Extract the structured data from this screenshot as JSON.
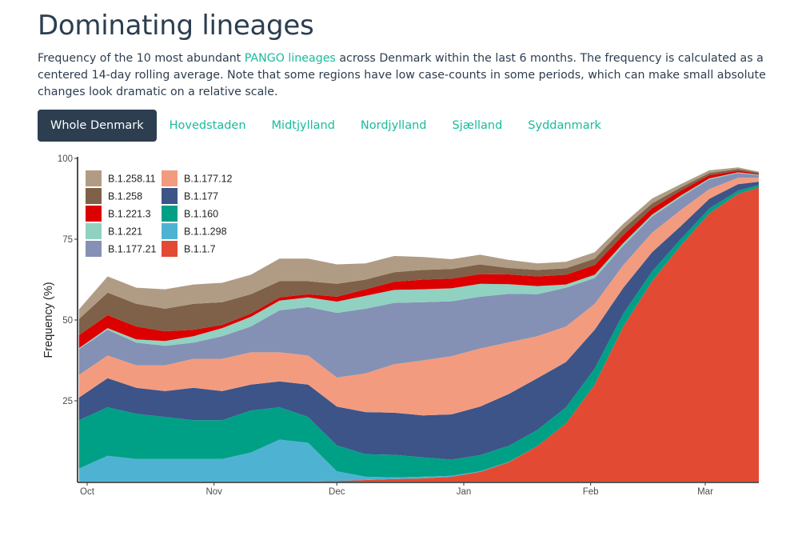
{
  "page": {
    "title": "Dominating lineages",
    "description_before_link": "Frequency of the 10 most abundant ",
    "description_link": "PANGO lineages",
    "description_after_link": " across Denmark within the last 6 months. The frequency is calculated as a centered 14-day rolling average. Note that some regions have low case-counts in some periods, which can make small absolute changes look dramatic on a relative scale."
  },
  "tabs": [
    {
      "label": "Whole Denmark",
      "active": true
    },
    {
      "label": "Hovedstaden",
      "active": false
    },
    {
      "label": "Midtjylland",
      "active": false
    },
    {
      "label": "Nordjylland",
      "active": false
    },
    {
      "label": "Sjælland",
      "active": false
    },
    {
      "label": "Syddanmark",
      "active": false
    }
  ],
  "colors": {
    "heading": "#2c3e50",
    "link": "#18bc9c",
    "active_tab_bg": "#2c3e50"
  },
  "chart_data": {
    "type": "area",
    "stacked": true,
    "title": "",
    "xlabel": "",
    "ylabel": "Frequency (%)",
    "ylim": [
      0,
      100
    ],
    "yticks": [
      25,
      50,
      75,
      100
    ],
    "xtick_labels": [
      "Oct",
      "Nov",
      "Dec",
      "Jan",
      "Feb",
      "Mar"
    ],
    "x_unit": "days since Oct 1",
    "xtick_positions": [
      0,
      31,
      61,
      92,
      123,
      151
    ],
    "xlim": [
      -2,
      165
    ],
    "grid": false,
    "legend_position": "top-left",
    "x": [
      -2,
      5,
      12,
      19,
      26,
      33,
      40,
      47,
      54,
      61,
      68,
      75,
      82,
      89,
      96,
      103,
      110,
      117,
      124,
      131,
      138,
      145,
      152,
      159,
      165
    ],
    "series": [
      {
        "name": "B.1.1.7",
        "color": "#e34a33",
        "values": [
          0,
          0,
          0,
          0,
          0,
          0,
          0,
          0,
          0,
          0.2,
          0.5,
          0.8,
          1,
          1.5,
          3,
          6,
          11,
          18,
          30,
          48,
          62,
          73,
          83,
          89,
          91
        ]
      },
      {
        "name": "B.1.1.298",
        "color": "#4eb3d3",
        "values": [
          4,
          8,
          7,
          7,
          7,
          7,
          9,
          13,
          12,
          3,
          1,
          0.5,
          0.5,
          0.3,
          0.2,
          0.1,
          0,
          0,
          0,
          0,
          0,
          0,
          0,
          0,
          0
        ]
      },
      {
        "name": "B.1.160",
        "color": "#00a087",
        "values": [
          15,
          15,
          14,
          13,
          12,
          12,
          13,
          10,
          8,
          8,
          7,
          7,
          6,
          5,
          5,
          5,
          5,
          5,
          5,
          4,
          3,
          2,
          1.5,
          1,
          0.8
        ]
      },
      {
        "name": "B.1.177",
        "color": "#3c5488",
        "values": [
          7,
          9,
          8,
          8,
          10,
          9,
          8,
          8,
          10,
          12,
          13,
          13,
          13,
          14,
          15,
          16,
          16,
          14,
          12,
          8,
          6,
          4,
          3,
          2,
          1
        ]
      },
      {
        "name": "B.1.177.12",
        "color": "#f39b7f",
        "values": [
          7,
          7,
          7,
          8,
          9,
          10,
          10,
          9,
          9,
          9,
          12,
          15,
          17,
          18,
          18,
          16,
          13,
          11,
          8,
          7,
          6,
          5,
          3,
          2,
          1.2
        ]
      },
      {
        "name": "B.1.177.21",
        "color": "#8491b4",
        "values": [
          8,
          8,
          7,
          6,
          5,
          7,
          8,
          13,
          15,
          20,
          20,
          19,
          18,
          17,
          16,
          15,
          13,
          12,
          8,
          6,
          5,
          4,
          3,
          1.5,
          0.8
        ]
      },
      {
        "name": "B.1.221",
        "color": "#91d1c2",
        "values": [
          0.3,
          0.5,
          1,
          1.5,
          2,
          2.5,
          3,
          3,
          3,
          3.5,
          4,
          4,
          4,
          4,
          4,
          3,
          2.5,
          1,
          1,
          0.8,
          0.6,
          0.5,
          0.3,
          0.2,
          0.2
        ]
      },
      {
        "name": "B.1.221.3",
        "color": "#dc0000",
        "values": [
          4,
          4,
          4,
          3,
          2,
          1,
          1,
          1,
          1,
          1.5,
          2,
          2.5,
          3,
          3,
          3,
          3,
          3,
          3,
          3,
          2.5,
          2,
          1.5,
          1,
          0.5,
          0.3
        ]
      },
      {
        "name": "B.1.258",
        "color": "#7e6148",
        "values": [
          5,
          7,
          7,
          7,
          8,
          7,
          6,
          5,
          4,
          4,
          3,
          3,
          3,
          3,
          3,
          2,
          2,
          2,
          2,
          2,
          1.5,
          1,
          0.7,
          0.5,
          0.3
        ]
      },
      {
        "name": "B.1.258.11",
        "color": "#b09c85",
        "values": [
          3,
          5,
          5,
          6,
          6,
          6,
          6,
          7,
          7,
          6,
          5,
          5,
          4,
          3,
          3,
          2.5,
          2,
          2,
          2,
          1.5,
          1.5,
          1,
          0.8,
          0.5,
          0.3
        ]
      }
    ],
    "legend_order": [
      "B.1.258.11",
      "B.1.258",
      "B.1.221.3",
      "B.1.221",
      "B.1.177.21",
      "B.1.177.12",
      "B.1.177",
      "B.1.160",
      "B.1.1.298",
      "B.1.1.7"
    ]
  }
}
